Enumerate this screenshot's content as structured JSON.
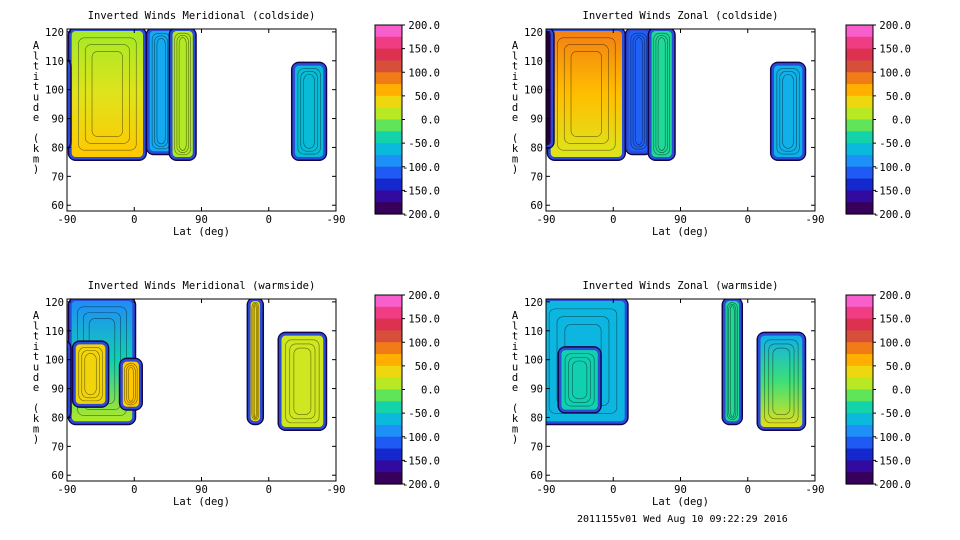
{
  "footer": "2011155v01 Wed Aug 10 09:22:29 2016",
  "chart_data": [
    {
      "type": "heatmap",
      "title": "Inverted Winds Meridional (coldside)",
      "xlabel": "Lat (deg)",
      "ylabel": "Altitude (km)",
      "x_tick_labels": [
        "-90",
        "0",
        "90",
        "0",
        "-90"
      ],
      "y_ticks": [
        60,
        70,
        80,
        90,
        100,
        110,
        120
      ],
      "ylim": [
        58,
        121
      ],
      "colorbar": {
        "min": -200,
        "max": 200,
        "labels": [
          "200.0",
          "150.0",
          "100.0",
          "50.0",
          "0.0",
          "-50.0",
          "-100.0",
          "-150.0",
          "-200.0"
        ]
      },
      "blocks": [
        {
          "x": [
            -18,
            38
          ],
          "y": [
            76,
            121
          ],
          "value": 5,
          "grad": 45,
          "grad_dir": "down"
        },
        {
          "x": [
            -25,
            -18
          ],
          "y": [
            80,
            110
          ],
          "value": -140
        },
        {
          "x": [
            40,
            60
          ],
          "y": [
            78,
            121
          ],
          "value": -75
        },
        {
          "x": [
            57,
            75
          ],
          "y": [
            76,
            121
          ],
          "value": 10
        },
        {
          "x": [
            148,
            172
          ],
          "y": [
            76,
            109
          ],
          "value": -60
        }
      ]
    },
    {
      "type": "heatmap",
      "title": "Inverted Winds Zonal (coldside)",
      "xlabel": "Lat (deg)",
      "ylabel": "Altitude (km)",
      "x_tick_labels": [
        "-90",
        "0",
        "90",
        "0",
        "-90"
      ],
      "y_ticks": [
        60,
        70,
        80,
        90,
        100,
        110,
        120
      ],
      "ylim": [
        58,
        121
      ],
      "colorbar": {
        "min": -200,
        "max": 200,
        "labels": [
          "200.0",
          "150.0",
          "100.0",
          "50.0",
          "0.0",
          "-50.0",
          "-100.0",
          "-150.0",
          "-200.0"
        ]
      },
      "blocks": [
        {
          "x": [
            -18,
            38
          ],
          "y": [
            76,
            121
          ],
          "value": 25,
          "grad": 60,
          "grad_dir": "up"
        },
        {
          "x": [
            -25,
            -15
          ],
          "y": [
            80,
            121
          ],
          "value": -190
        },
        {
          "x": [
            40,
            58
          ],
          "y": [
            78,
            121
          ],
          "value": -110
        },
        {
          "x": [
            57,
            75
          ],
          "y": [
            76,
            121
          ],
          "value": -30
        },
        {
          "x": [
            148,
            172
          ],
          "y": [
            76,
            109
          ],
          "value": -70
        }
      ]
    },
    {
      "type": "heatmap",
      "title": "Inverted Winds Meridional (warmside)",
      "xlabel": "Lat (deg)",
      "ylabel": "Altitude (km)",
      "x_tick_labels": [
        "-90",
        "0",
        "90",
        "0",
        "-90"
      ],
      "y_ticks": [
        60,
        70,
        80,
        90,
        100,
        110,
        120
      ],
      "ylim": [
        58,
        121
      ],
      "colorbar": {
        "min": -200,
        "max": 200,
        "labels": [
          "200.0",
          "150.0",
          "100.0",
          "50.0",
          "0.0",
          "-50.0",
          "-100.0",
          "-150.0",
          "-200.0"
        ]
      },
      "blocks": [
        {
          "x": [
            -18,
            30
          ],
          "y": [
            78,
            121
          ],
          "value": 10,
          "grad": -100,
          "grad_dir": "up"
        },
        {
          "x": [
            -25,
            -18
          ],
          "y": [
            80,
            106
          ],
          "value": -190
        },
        {
          "x": [
            -15,
            10
          ],
          "y": [
            84,
            106
          ],
          "value": 40
        },
        {
          "x": [
            20,
            35
          ],
          "y": [
            83,
            100
          ],
          "value": 50
        },
        {
          "x": [
            115,
            125
          ],
          "y": [
            78,
            121
          ],
          "value": 40
        },
        {
          "x": [
            138,
            172
          ],
          "y": [
            76,
            109
          ],
          "value": 20
        }
      ]
    },
    {
      "type": "heatmap",
      "title": "Inverted Winds Zonal (warmside)",
      "xlabel": "Lat (deg)",
      "ylabel": "Altitude (km)",
      "x_tick_labels": [
        "-90",
        "0",
        "90",
        "0",
        "-90"
      ],
      "y_ticks": [
        60,
        70,
        80,
        90,
        100,
        110,
        120
      ],
      "ylim": [
        58,
        121
      ],
      "colorbar": {
        "min": -200,
        "max": 200,
        "labels": [
          "200.0",
          "150.0",
          "100.0",
          "50.0",
          "0.0",
          "-50.0",
          "-100.0",
          "-150.0",
          "-200.0"
        ]
      },
      "blocks": [
        {
          "x": [
            -25,
            40
          ],
          "y": [
            78,
            121
          ],
          "value": -65
        },
        {
          "x": [
            -10,
            20
          ],
          "y": [
            82,
            104
          ],
          "value": -40
        },
        {
          "x": [
            112,
            125
          ],
          "y": [
            78,
            121
          ],
          "value": -30
        },
        {
          "x": [
            138,
            172
          ],
          "y": [
            76,
            109
          ],
          "value": 30,
          "grad": -100,
          "grad_dir": "up"
        }
      ]
    }
  ]
}
